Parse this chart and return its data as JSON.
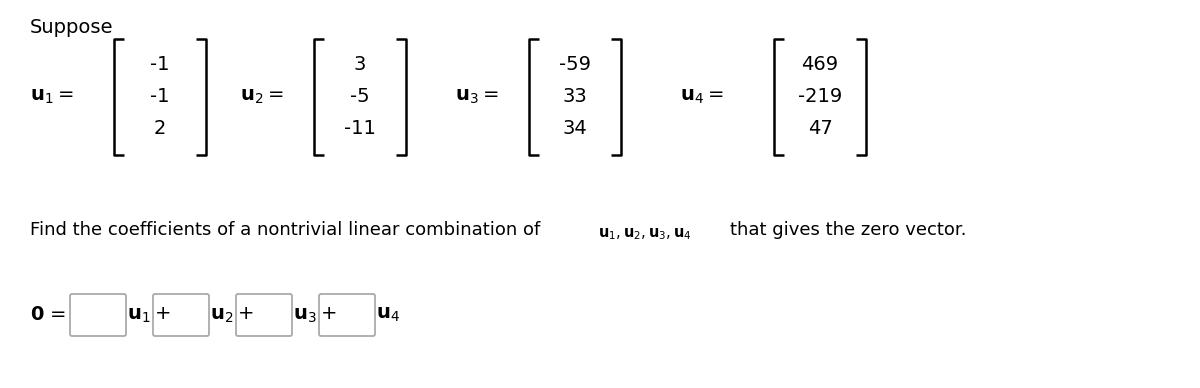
{
  "bg_color": "#ffffff",
  "text_color": "#000000",
  "u1_vec": [
    "-1",
    "-1",
    "2"
  ],
  "u2_vec": [
    "3",
    "-5",
    "-11"
  ],
  "u3_vec": [
    "-59",
    "33",
    "34"
  ],
  "u4_vec": [
    "469",
    "-219",
    "47"
  ],
  "title": "Suppose",
  "find_text_main": "Find the coefficients of a nontrivial linear combination of",
  "find_text_end": "that gives the zero vector.",
  "font_size_title": 14,
  "font_size_main": 13,
  "font_size_matrix": 14,
  "font_size_label": 14,
  "font_size_answer": 14
}
